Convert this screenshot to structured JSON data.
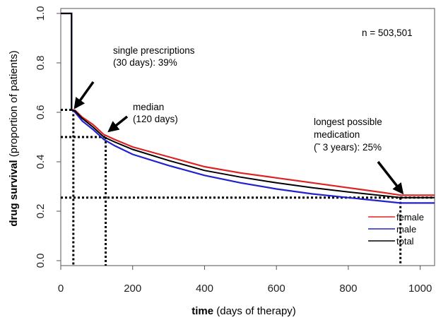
{
  "chart_data": {
    "type": "line",
    "title": "",
    "xlabel_bold": "time",
    "xlabel_rest": " (days of therapy)",
    "ylabel_bold": "drug survival",
    "ylabel_rest": " (proportion of patients)",
    "xlim": [
      0,
      1040
    ],
    "ylim": [
      -0.02,
      1.02
    ],
    "x_ticks": [
      0,
      200,
      400,
      600,
      800,
      1000
    ],
    "x_tick_labels": [
      "0",
      "200",
      "400",
      "600",
      "800",
      "1000"
    ],
    "y_ticks": [
      0.0,
      0.2,
      0.4,
      0.6,
      0.8,
      1.0
    ],
    "y_tick_labels": [
      "0.0",
      "0.2",
      "0.4",
      "0.6",
      "0.8",
      "1.0"
    ],
    "n_label": "n = 503,501",
    "series": [
      {
        "name": "female",
        "color": "#dd2222",
        "points": [
          [
            0,
            1.0
          ],
          [
            30,
            1.0
          ],
          [
            30,
            0.61
          ],
          [
            40,
            0.608
          ],
          [
            60,
            0.58
          ],
          [
            90,
            0.55
          ],
          [
            120,
            0.51
          ],
          [
            150,
            0.49
          ],
          [
            200,
            0.46
          ],
          [
            300,
            0.42
          ],
          [
            400,
            0.38
          ],
          [
            500,
            0.355
          ],
          [
            600,
            0.335
          ],
          [
            700,
            0.315
          ],
          [
            800,
            0.295
          ],
          [
            900,
            0.275
          ],
          [
            945,
            0.265
          ],
          [
            1040,
            0.265
          ]
        ]
      },
      {
        "name": "male",
        "color": "#2222cc",
        "points": [
          [
            0,
            1.0
          ],
          [
            30,
            1.0
          ],
          [
            30,
            0.61
          ],
          [
            40,
            0.6
          ],
          [
            60,
            0.565
          ],
          [
            90,
            0.53
          ],
          [
            120,
            0.49
          ],
          [
            150,
            0.465
          ],
          [
            200,
            0.43
          ],
          [
            300,
            0.385
          ],
          [
            400,
            0.345
          ],
          [
            500,
            0.315
          ],
          [
            600,
            0.29
          ],
          [
            700,
            0.27
          ],
          [
            800,
            0.255
          ],
          [
            900,
            0.24
          ],
          [
            945,
            0.233
          ],
          [
            1040,
            0.233
          ]
        ]
      },
      {
        "name": "total",
        "color": "#000000",
        "points": [
          [
            0,
            1.0
          ],
          [
            30,
            1.0
          ],
          [
            30,
            0.61
          ],
          [
            40,
            0.605
          ],
          [
            60,
            0.575
          ],
          [
            90,
            0.54
          ],
          [
            120,
            0.5
          ],
          [
            150,
            0.48
          ],
          [
            200,
            0.45
          ],
          [
            300,
            0.405
          ],
          [
            400,
            0.365
          ],
          [
            500,
            0.338
          ],
          [
            600,
            0.315
          ],
          [
            700,
            0.295
          ],
          [
            800,
            0.278
          ],
          [
            900,
            0.262
          ],
          [
            945,
            0.255
          ],
          [
            1040,
            0.255
          ]
        ]
      }
    ],
    "reference_lines": [
      {
        "label": "single-prescriptions",
        "x": 35,
        "y": 0.61
      },
      {
        "label": "median",
        "x": 125,
        "y": 0.5
      },
      {
        "label": "longest-possible",
        "x": 945,
        "y": 0.255
      }
    ],
    "annotations": [
      {
        "name": "single-prescriptions-annotation",
        "lines": [
          "single prescriptions",
          "(30 days): 39%"
        ],
        "arrow_to": [
          40,
          0.62
        ]
      },
      {
        "name": "median-annotation",
        "lines": [
          "median",
          "(120 days)"
        ],
        "arrow_to": [
          135,
          0.525
        ]
      },
      {
        "name": "longest-annotation",
        "lines": [
          "longest possible",
          "medication",
          "(˜ 3 years): 25%"
        ],
        "arrow_to": [
          950,
          0.275
        ]
      }
    ],
    "legend": {
      "placement": "bottom-right",
      "entries": [
        {
          "name": "female",
          "color": "#dd2222"
        },
        {
          "name": "male",
          "color": "#2222cc"
        },
        {
          "name": "total",
          "color": "#000000"
        }
      ]
    }
  }
}
